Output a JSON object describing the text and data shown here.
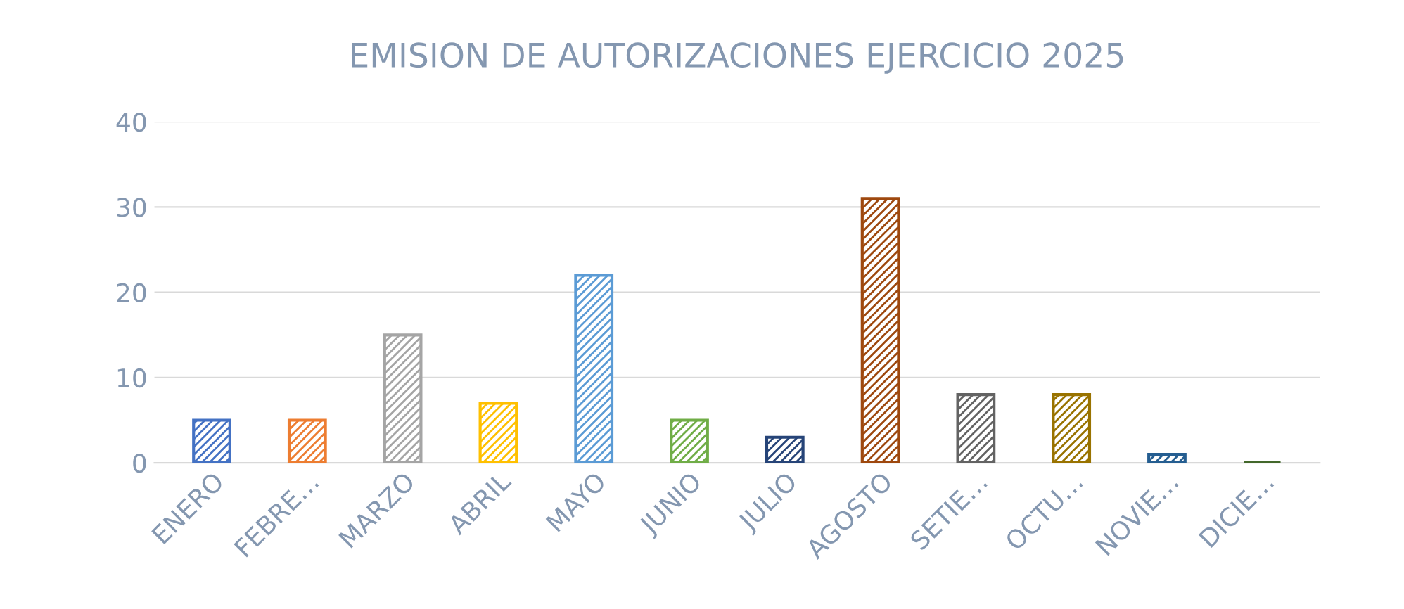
{
  "chart_data": {
    "type": "bar",
    "title": "EMISION DE AUTORIZACIONES EJERCICIO 2025",
    "categories": [
      "ENERO",
      "FEBRE…",
      "MARZO",
      "ABRIL",
      "MAYO",
      "JUNIO",
      "JULIO",
      "AGOSTO",
      "SETIE…",
      "OCTU…",
      "NOVIE…",
      "DICIE…"
    ],
    "values": [
      5,
      5,
      15,
      7,
      22,
      5,
      3,
      31,
      8,
      8,
      1,
      0
    ],
    "colors": [
      "#4472c4",
      "#ed7d31",
      "#a5a5a5",
      "#ffc000",
      "#5b9bd5",
      "#70ad47",
      "#264478",
      "#9e480e",
      "#636363",
      "#997300",
      "#255e91",
      "#43682b"
    ],
    "ylim": [
      0,
      40
    ],
    "yticks": [
      0,
      10,
      20,
      30,
      40
    ],
    "grid": "y",
    "legend": false
  }
}
